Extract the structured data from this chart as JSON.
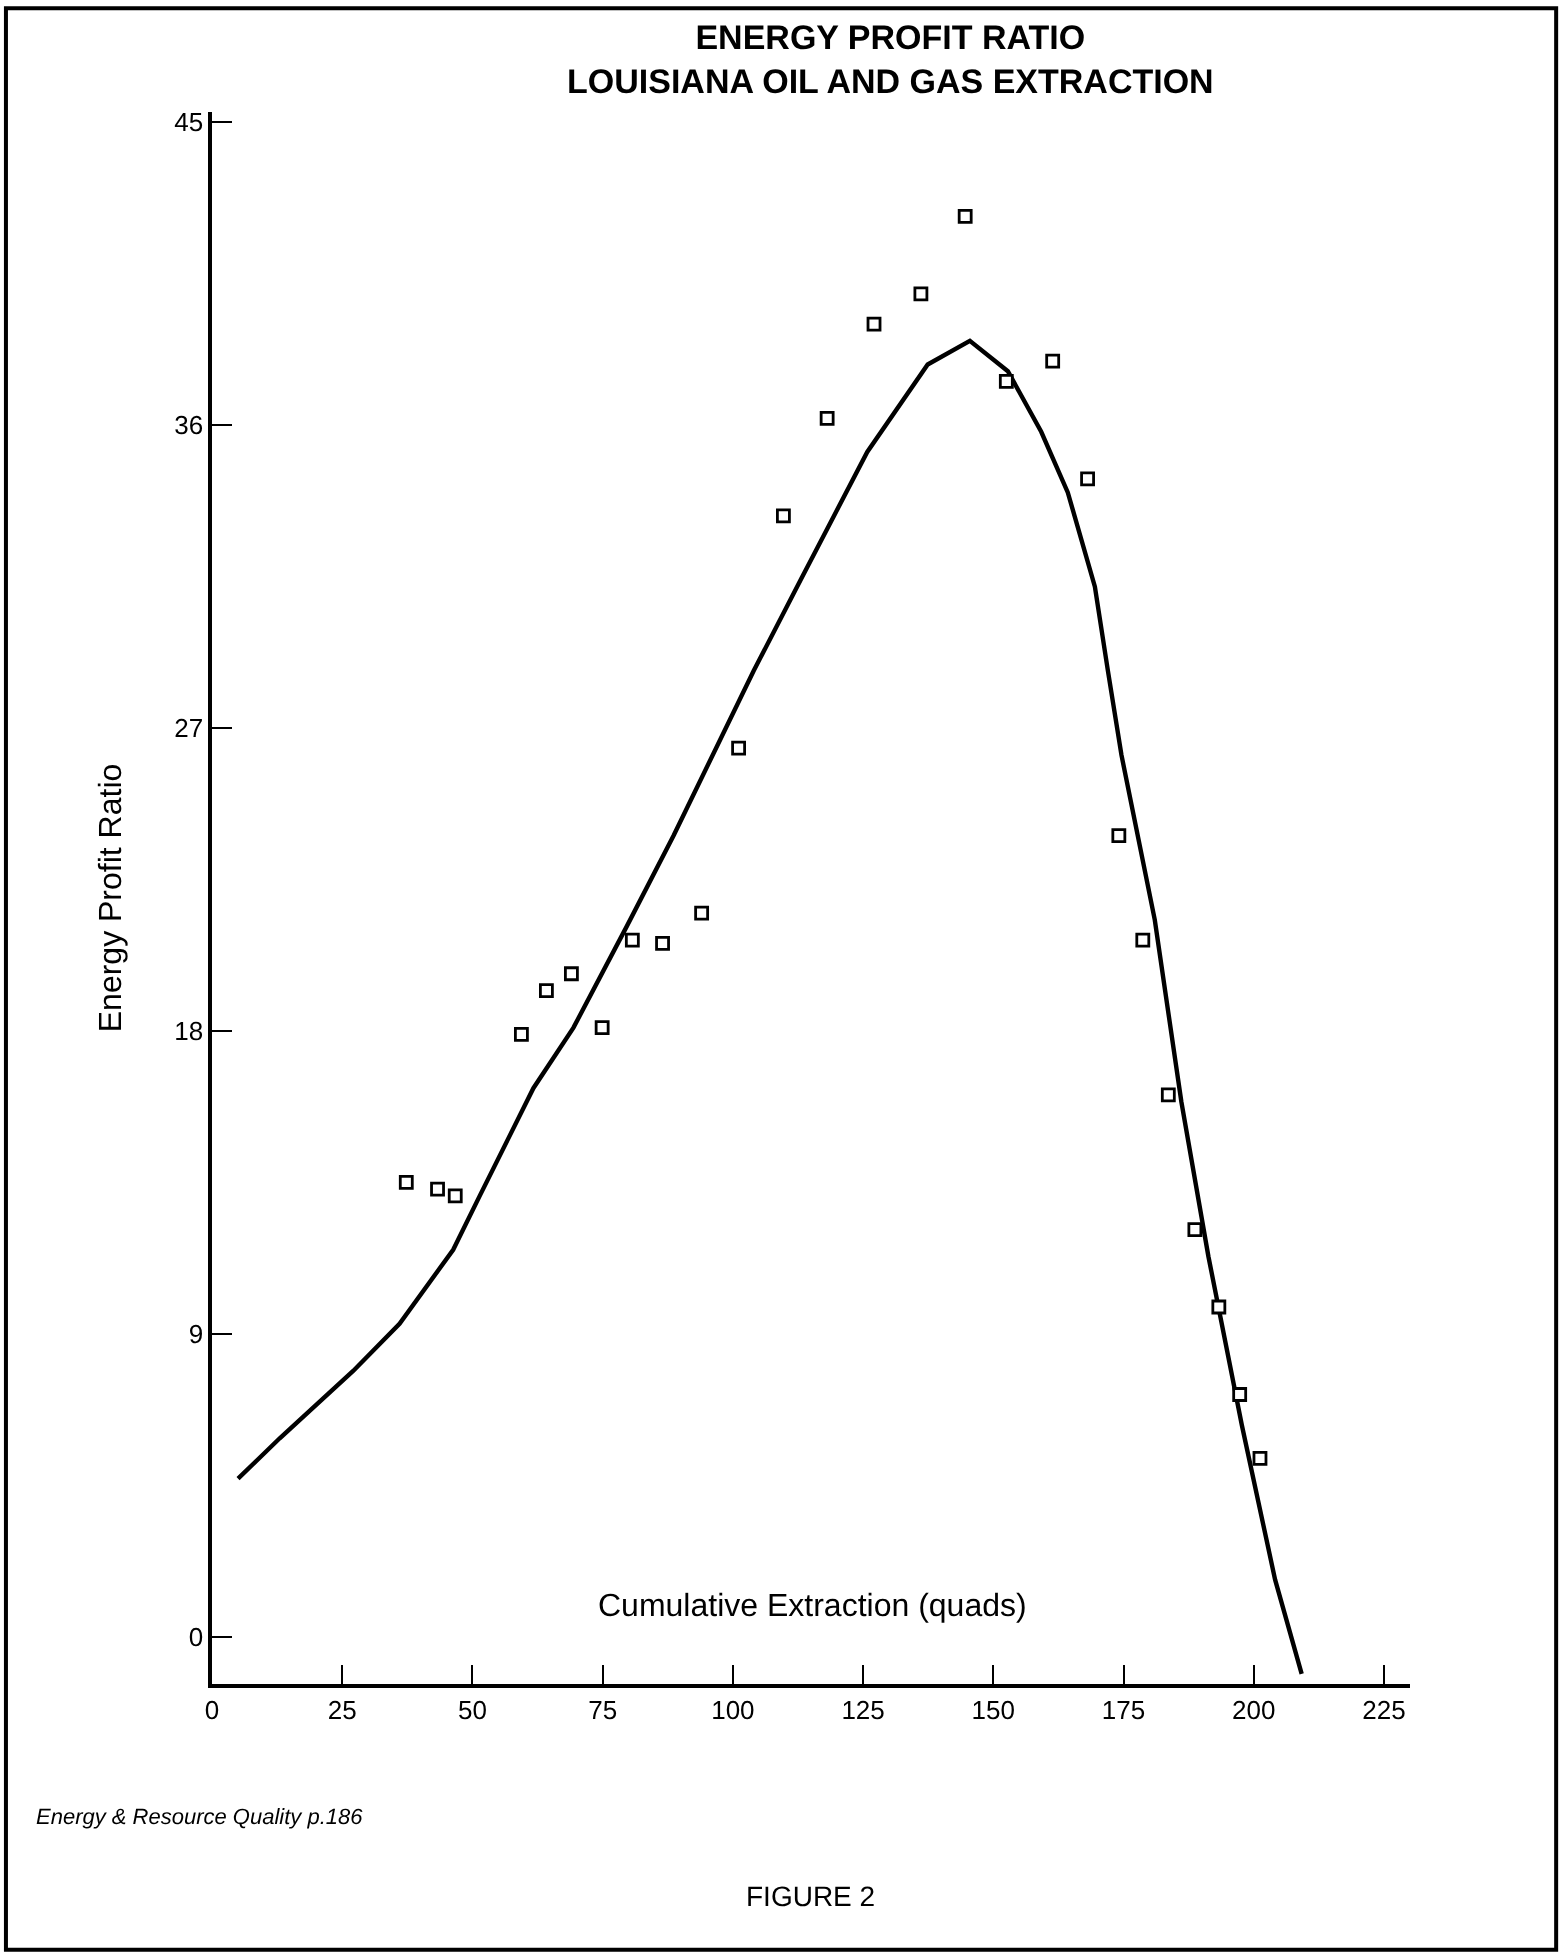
{
  "chart_data": {
    "type": "scatter",
    "title": "ENERGY PROFIT RATIO\nLOUISIANA OIL AND GAS EXTRACTION",
    "xlabel": "Cumulative Extraction (quads)",
    "ylabel": "Energy Profit Ratio",
    "annotations": [
      "Energy & Resource Quality p.186",
      "FIGURE 2"
    ],
    "series": [
      {
        "color": "#000000",
        "marker": "square",
        "x": [
          37.3,
          43.3,
          46.7,
          59.4,
          64.2,
          69.0,
          74.9,
          80.7,
          86.5,
          94.0,
          101.1,
          109.7,
          118.1,
          127.1,
          136.1,
          144.6,
          152.5,
          161.4,
          168.1,
          174.1,
          178.7,
          183.6,
          188.7,
          193.3,
          197.3,
          201.2
        ],
        "values": [
          13.5,
          13.3,
          13.1,
          17.9,
          19.2,
          19.7,
          18.1,
          20.7,
          20.6,
          21.5,
          26.4,
          33.3,
          36.2,
          39.0,
          39.9,
          42.2,
          37.3,
          37.9,
          34.4,
          23.8,
          20.7,
          16.1,
          12.1,
          9.8,
          7.2,
          5.3
        ]
      },
      {
        "type": "line",
        "color": "#000000",
        "marker": "none",
        "line_style": "solid",
        "x": [
          5,
          13.0,
          27.1,
          36.0,
          46.3,
          51.4,
          61.7,
          69.4,
          79.6,
          88.6,
          104.0,
          113.0,
          119.4,
          125.8,
          137.4,
          145.5,
          152.8,
          159.2,
          164.3,
          169.5,
          172.0,
          174.6,
          181.0,
          186.1,
          191.3,
          197.7,
          204.1,
          209.2
        ],
        "values": [
          4.7,
          5.9,
          7.9,
          9.3,
          11.5,
          13.1,
          16.3,
          18.1,
          21.1,
          23.8,
          28.7,
          31.4,
          33.3,
          35.2,
          37.8,
          38.5,
          37.6,
          35.8,
          34.0,
          31.2,
          28.7,
          26.2,
          21.3,
          15.9,
          11.3,
          6.3,
          1.7,
          -1.1
        ]
      }
    ],
    "xlim": [
      0,
      230
    ],
    "xticks": [
      0,
      25,
      50,
      75,
      100,
      125,
      150,
      175,
      200,
      225
    ],
    "ylim": [
      -1.4,
      45.3
    ],
    "yticks": [
      0,
      9,
      18,
      27,
      36,
      45
    ]
  }
}
